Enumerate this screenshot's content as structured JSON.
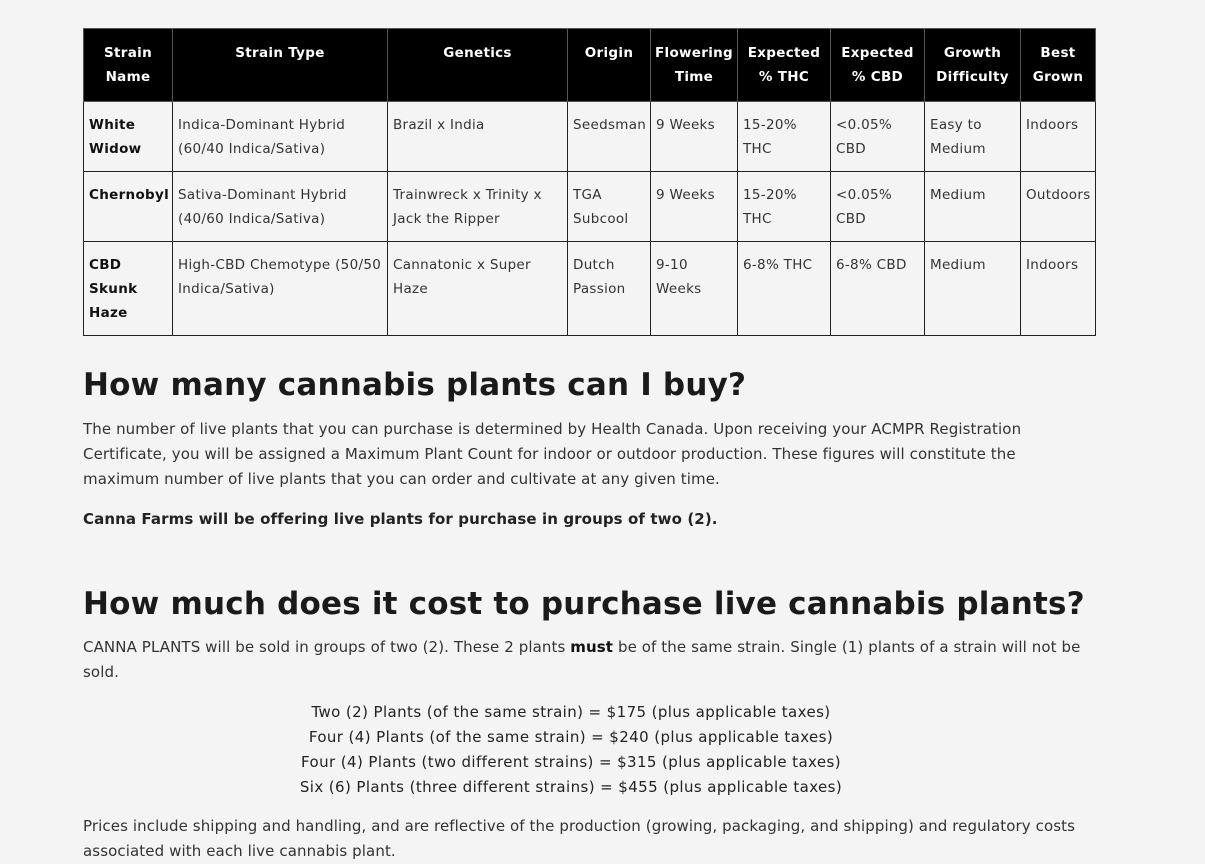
{
  "table": {
    "headers": [
      "Strain Name",
      "Strain Type",
      "Genetics",
      "Origin",
      "Flowering Time",
      "Expected % THC",
      "Expected % CBD",
      "Growth Difficulty",
      "Best Grown"
    ],
    "rows": [
      {
        "name": "White Widow",
        "type": "Indica-Dominant Hybrid (60/40 Indica/Sativa)",
        "genetics": "Brazil x India",
        "origin": "Seedsman",
        "flowering": "9 Weeks",
        "thc": "15-20% THC",
        "cbd": "<0.05% CBD",
        "difficulty": "Easy to Medium",
        "best": "Indoors"
      },
      {
        "name": "Chernobyl",
        "type": "Sativa-Dominant Hybrid (40/60 Indica/Sativa)",
        "genetics": "Trainwreck x Trinity x Jack the Ripper",
        "origin": "TGA Subcool",
        "flowering": "9 Weeks",
        "thc": "15-20% THC",
        "cbd": "<0.05% CBD",
        "difficulty": "Medium",
        "best": "Outdoors"
      },
      {
        "name": "CBD Skunk Haze",
        "type": "High-CBD Chemotype (50/50 Indica/Sativa)",
        "genetics": "Cannatonic x Super Haze",
        "origin": "Dutch Passion",
        "flowering": "9-10 Weeks",
        "thc": "6-8% THC",
        "cbd": "6-8% CBD",
        "difficulty": "Medium",
        "best": "Indoors"
      }
    ]
  },
  "section_plants": {
    "heading": "How many cannabis plants can I buy?",
    "paragraph": "The number of live plants that you can purchase is determined by Health Canada.  Upon receiving your ACMPR Registration Certificate, you will be assigned a Maximum Plant Count for indoor or outdoor production.  These figures will constitute the maximum number of live plants that you can order and cultivate at any given time.",
    "bold_note": "Canna Farms will be offering live plants for purchase in groups of two (2)."
  },
  "section_cost": {
    "heading": "How much does it cost to purchase live cannabis plants?",
    "intro_before": "CANNA PLANTS will be sold in groups of two (2).  These 2 plants ",
    "intro_bold": "must",
    "intro_after": " be of the same strain. Single (1) plants of a strain will not be sold.",
    "prices": [
      "Two (2) Plants (of the same strain) = $175 (plus applicable taxes)",
      "Four (4) Plants (of the same strain) = $240 (plus applicable taxes)",
      "Four (4) Plants (two different strains) = $315 (plus applicable taxes)",
      "Six (6) Plants (three different strains) = $455 (plus applicable taxes)"
    ],
    "footer": "Prices include shipping and handling, and are reflective of the production (growing, packaging, and shipping) and regulatory costs associated with each live cannabis plant."
  }
}
